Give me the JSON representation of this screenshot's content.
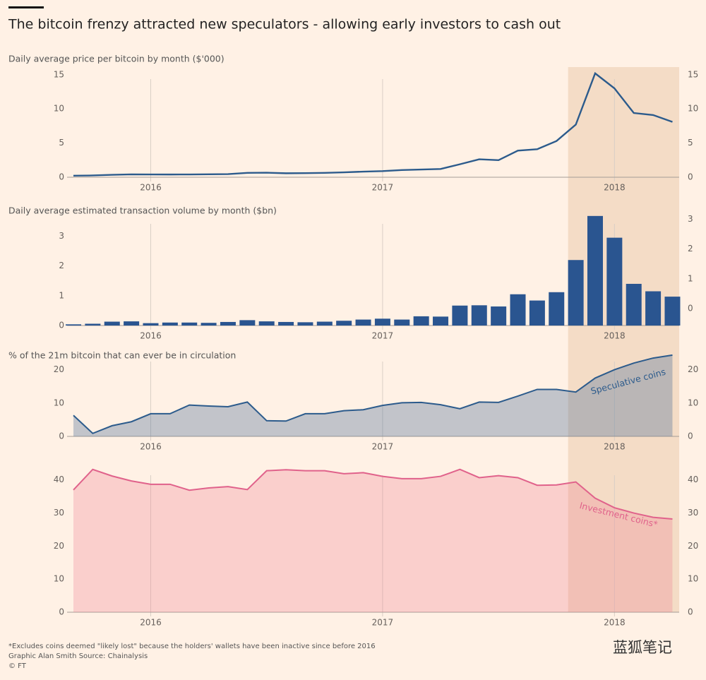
{
  "title": "The bitcoin frenzy attracted new speculators - allowing early investors to cash out",
  "highlight": {
    "from": 26,
    "color": "#f4dcc6"
  },
  "chart_data": [
    {
      "type": "line",
      "subtitle": "Daily average price per bitcoin by month ($'000)",
      "categories": [
        null,
        null,
        null,
        null,
        "2016",
        null,
        null,
        null,
        null,
        null,
        null,
        null,
        null,
        null,
        null,
        null,
        "2017",
        null,
        null,
        null,
        null,
        null,
        null,
        null,
        null,
        null,
        null,
        null,
        "2018",
        null,
        null,
        null
      ],
      "values": [
        0.23,
        0.26,
        0.35,
        0.42,
        0.41,
        0.4,
        0.41,
        0.43,
        0.46,
        0.64,
        0.66,
        0.58,
        0.6,
        0.64,
        0.72,
        0.82,
        0.9,
        1.05,
        1.13,
        1.21,
        1.9,
        2.63,
        2.5,
        3.9,
        4.1,
        5.3,
        7.7,
        15.2,
        13.0,
        9.4,
        9.1,
        8.1
      ],
      "color": "#2c5b8c",
      "ylim": [
        0,
        15.6
      ],
      "yticks": [
        0,
        5,
        10,
        15
      ]
    },
    {
      "type": "bar",
      "subtitle": "Daily average estimated transaction volume by month ($bn)",
      "categories": [
        null,
        null,
        null,
        null,
        "2016",
        null,
        null,
        null,
        null,
        null,
        null,
        null,
        null,
        null,
        null,
        null,
        "2017",
        null,
        null,
        null,
        null,
        null,
        null,
        null,
        null,
        null,
        null,
        null,
        "2018",
        null,
        null,
        null
      ],
      "values": [
        0.04,
        0.06,
        0.13,
        0.14,
        0.08,
        0.1,
        0.1,
        0.09,
        0.12,
        0.18,
        0.14,
        0.12,
        0.11,
        0.13,
        0.16,
        0.2,
        0.23,
        0.2,
        0.31,
        0.3,
        0.67,
        0.68,
        0.64,
        1.05,
        0.84,
        1.12,
        2.2,
        3.68,
        2.95,
        1.4,
        1.15,
        0.97
      ],
      "color": "#2a5590",
      "ylim": [
        0,
        3.7
      ],
      "yticks": [
        0,
        1,
        2,
        3
      ],
      "y2lim": [
        -0.57,
        3.13
      ],
      "y2ticks": [
        0,
        1,
        2,
        3
      ]
    },
    {
      "type": "area",
      "subtitle": "% of the 21m bitcoin that can ever be in circulation",
      "categories": [
        null,
        null,
        null,
        null,
        "2016",
        null,
        null,
        null,
        null,
        null,
        null,
        null,
        null,
        null,
        null,
        null,
        "2017",
        null,
        null,
        null,
        null,
        null,
        null,
        null,
        null,
        null,
        null,
        null,
        "2018",
        null,
        null,
        null
      ],
      "values": [
        6.3,
        0.9,
        3.2,
        4.4,
        6.8,
        6.8,
        9.4,
        9.1,
        8.9,
        10.3,
        4.7,
        4.6,
        6.8,
        6.8,
        7.7,
        8.0,
        9.3,
        10.1,
        10.2,
        9.5,
        8.3,
        10.3,
        10.2,
        12.1,
        14.1,
        14.1,
        13.3,
        17.5,
        20.0,
        22.0,
        23.5,
        24.4
      ],
      "color": "#2c5b8c",
      "fill": "rgba(70,105,150,0.33)",
      "annotation": "Speculative coins",
      "ylim": [
        0,
        25
      ],
      "yticks": [
        0,
        10,
        20
      ]
    },
    {
      "type": "area",
      "categories": [
        null,
        null,
        null,
        null,
        "2016",
        null,
        null,
        null,
        null,
        null,
        null,
        null,
        null,
        null,
        null,
        null,
        "2017",
        null,
        null,
        null,
        null,
        null,
        null,
        null,
        null,
        null,
        null,
        null,
        "2018",
        null,
        null,
        null
      ],
      "values": [
        37,
        43.2,
        41.2,
        39.7,
        38.7,
        38.7,
        36.9,
        37.6,
        38.0,
        37.1,
        42.8,
        43.1,
        42.8,
        42.8,
        41.9,
        42.2,
        41.1,
        40.4,
        40.4,
        41.1,
        43.2,
        40.7,
        41.3,
        40.7,
        38.4,
        38.5,
        39.4,
        34.5,
        31.6,
        30.0,
        28.7,
        28.2
      ],
      "color": "#e0628b",
      "fill": "rgba(240,130,145,0.3)",
      "annotation": "Investment coins*",
      "ylim": [
        0,
        44
      ],
      "yticks": [
        0,
        10,
        20,
        30,
        40
      ]
    }
  ],
  "notes": [
    "*Excludes coins deemed \"likely lost\" because the holders' wallets have been inactive since before 2016",
    "Graphic Alan Smith  Source: Chainalysis",
    "© FT"
  ],
  "watermark": "蓝狐笔记"
}
